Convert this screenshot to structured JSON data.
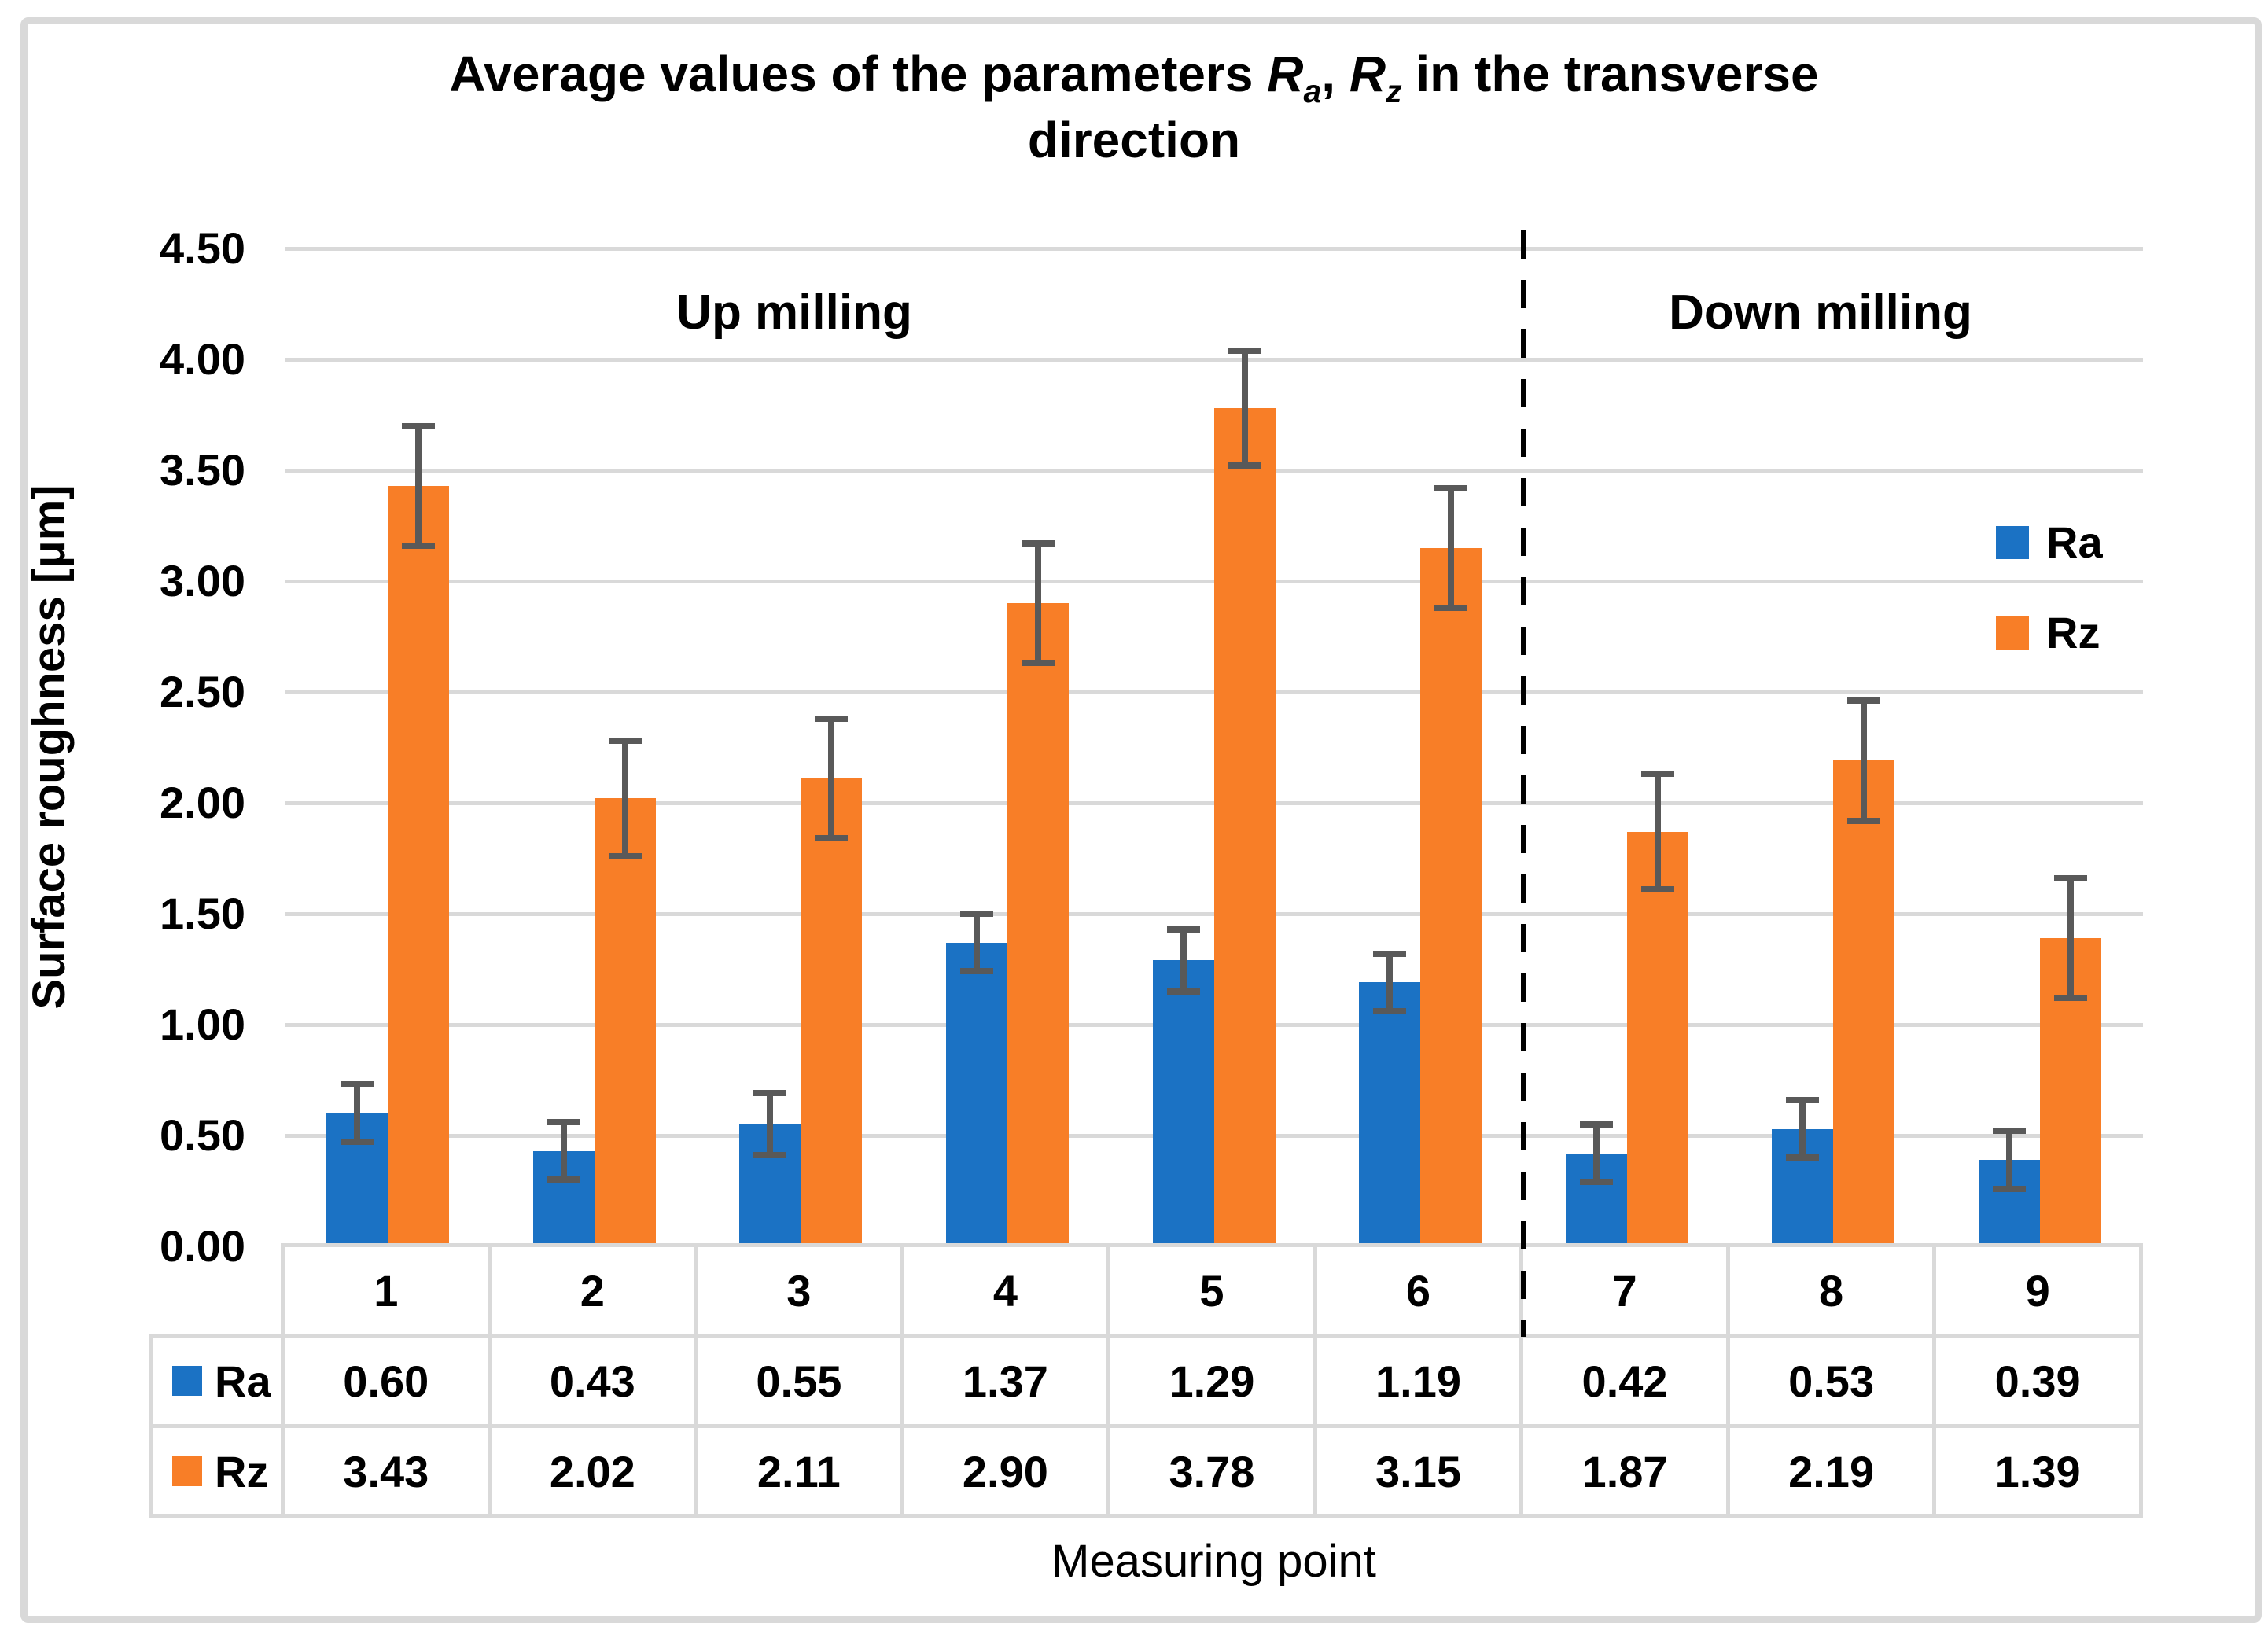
{
  "title": {
    "part1": "Average values of the parameters ",
    "r": "R",
    "sub_a": "a",
    "comma": ", ",
    "sub_z": "z",
    "part2": " in the transverse",
    "line2": "direction"
  },
  "axis": {
    "y_title": "Surface roughness [μm]",
    "x_title": "Measuring point",
    "y_ticks": [
      "0.00",
      "0.50",
      "1.00",
      "1.50",
      "2.00",
      "2.50",
      "3.00",
      "3.50",
      "4.00",
      "4.50"
    ]
  },
  "legend": [
    {
      "label": "Ra",
      "color": "#1b72c4"
    },
    {
      "label": "Rz",
      "color": "#f87e27"
    }
  ],
  "chart_data": {
    "type": "bar",
    "title": "Average values of the parameters Ra, Rz in the transverse direction",
    "xlabel": "Measuring point",
    "ylabel": "Surface roughness [μm]",
    "ylim": [
      0,
      4.5
    ],
    "ytick_step": 0.5,
    "grid": true,
    "legend_position": "right",
    "data_table": true,
    "categories": [
      "1",
      "2",
      "3",
      "4",
      "5",
      "6",
      "7",
      "8",
      "9"
    ],
    "series": [
      {
        "name": "Ra",
        "color": "#1b72c4",
        "values": [
          0.6,
          0.43,
          0.55,
          1.37,
          1.29,
          1.19,
          0.42,
          0.53,
          0.39
        ],
        "errors": [
          0.13,
          0.13,
          0.14,
          0.13,
          0.14,
          0.13,
          0.13,
          0.13,
          0.13
        ]
      },
      {
        "name": "Rz",
        "color": "#f87e27",
        "values": [
          3.43,
          2.02,
          2.11,
          2.9,
          3.78,
          3.15,
          1.87,
          2.19,
          1.39
        ],
        "errors": [
          0.27,
          0.26,
          0.27,
          0.27,
          0.26,
          0.27,
          0.26,
          0.27,
          0.27
        ]
      }
    ],
    "groups": [
      {
        "label": "Up milling",
        "categories": [
          "1",
          "2",
          "3",
          "4",
          "5",
          "6"
        ]
      },
      {
        "label": "Down milling",
        "categories": [
          "7",
          "8",
          "9"
        ]
      }
    ],
    "separator_after_category": "6",
    "error_bar_color": "#595959",
    "gridline_color": "#d9d9d9"
  },
  "colors": {
    "frame": "#d9d9d9",
    "grid": "#d9d9d9",
    "error_bar": "#595959",
    "series_ra": "#1b72c4",
    "series_rz": "#f87e27",
    "text": "#000000"
  }
}
